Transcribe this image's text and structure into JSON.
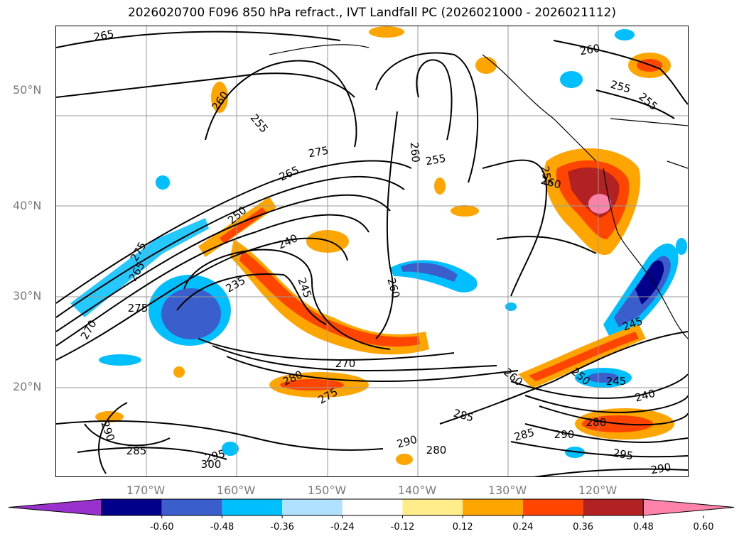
{
  "title": "2026020700 F096 850 hPa refract., IVT Landfall PC (2026021000 - 2026021112)",
  "lat_labels": [
    "50°N",
    "40°N",
    "30°N",
    "20°N"
  ],
  "lon_labels": [
    "170°W",
    "160°W",
    "150°W",
    "140°W",
    "130°W",
    "120°W"
  ],
  "colorbar": {
    "colors": [
      "#9932CC",
      "#00008B",
      "#3A5FCD",
      "#00BFFF",
      "#B0E2FF",
      "#FFFFFF",
      "#FFEC8B",
      "#FFA500",
      "#FF4500",
      "#B22222",
      "#FF82AB"
    ],
    "ticks": [
      "-0.60",
      "-0.48",
      "-0.36",
      "-0.24",
      "-0.12",
      "0.12",
      "0.24",
      "0.36",
      "0.48",
      "0.60"
    ]
  },
  "contour_labels": [
    "265",
    "260",
    "255",
    "275",
    "265",
    "250",
    "240",
    "235",
    "245",
    "260",
    "255",
    "260",
    "255",
    "260",
    "260",
    "255",
    "255",
    "275",
    "270",
    "280",
    "275",
    "285",
    "290",
    "280",
    "290",
    "285",
    "290",
    "280",
    "295",
    "290",
    "240",
    "245",
    "250",
    "260",
    "245",
    "300",
    "295",
    "285",
    "265",
    "270",
    "275"
  ]
}
